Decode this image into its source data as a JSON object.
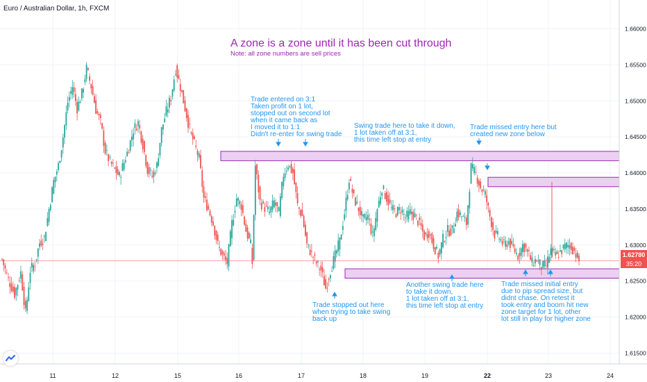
{
  "header": {
    "symbol": "Euro / Australian Dollar, 1h, FXCM"
  },
  "title": {
    "main": "A zone is a zone until it has been cut through",
    "note": "Note: all zone numbers are sell prices"
  },
  "price_badges": {
    "last_price": "1.62780",
    "countdown": "35:20"
  },
  "colors": {
    "bull": "#26a69a",
    "bear": "#ef5350",
    "zone_fill": "#e9c8f0",
    "zone_border": "#9c27b0",
    "annotation": "#2196f3",
    "title": "#9c27b0",
    "price_line": "#ef5350"
  },
  "annotations": [
    {
      "id": "trade-entered",
      "lines": [
        "Trade entered on 3:1",
        "Taken profit on 1 lot,",
        "stopped out on second lot",
        "when it came back as",
        "I moved it to 1:1",
        "Didn't re-enter for swing trade"
      ]
    },
    {
      "id": "swing-trade-1",
      "lines": [
        "Swing trade here to take it down,",
        "1 lot taken off at 3:1,",
        "this time left stop at entry"
      ]
    },
    {
      "id": "missed-entry",
      "lines": [
        "Trade missed entry here but",
        "created new zone below"
      ]
    },
    {
      "id": "stopped-out",
      "lines": [
        "Trade stopped out here",
        "when trying to take swing",
        "back up"
      ]
    },
    {
      "id": "swing-trade-2",
      "lines": [
        "Another swing trade here",
        "to take it down,",
        "1 lot taken off at 3:1,",
        "this time left stop at entry"
      ]
    },
    {
      "id": "missed-initial",
      "lines": [
        "Trade missed initial entry",
        "due to pip spread size, but",
        "didnt chase. On retest it",
        "took entry and boom hit new",
        "zone target for 1 lot, other",
        "lot still in play for higher zone"
      ]
    }
  ],
  "chart_data": {
    "type": "candlestick",
    "title": "A zone is a zone until it has been cut through",
    "subtitle": "Note: all zone numbers are sell prices",
    "x_tick_labels": [
      "11",
      "12",
      "15",
      "16",
      "17",
      "18",
      "19",
      "22",
      "23",
      "24"
    ],
    "y_tick_labels": [
      "1.66000",
      "1.65500",
      "1.65000",
      "1.64500",
      "1.64000",
      "1.63500",
      "1.63000",
      "1.62500",
      "1.62000",
      "1.61500"
    ],
    "ylim": [
      1.6135,
      1.664
    ],
    "last_price": 1.6278,
    "zones": [
      {
        "low": 1.6417,
        "high": 1.643
      },
      {
        "low": 1.6381,
        "high": 1.6394
      },
      {
        "low": 1.6254,
        "high": 1.6267
      }
    ],
    "close_anchors": [
      [
        0,
        1.628
      ],
      [
        4,
        1.6252
      ],
      [
        8,
        1.6232
      ],
      [
        12,
        1.6262
      ],
      [
        15,
        1.6205
      ],
      [
        18,
        1.6265
      ],
      [
        21,
        1.6275
      ],
      [
        24,
        1.6303
      ],
      [
        27,
        1.631
      ],
      [
        30,
        1.635
      ],
      [
        33,
        1.6388
      ],
      [
        36,
        1.641
      ],
      [
        39,
        1.645
      ],
      [
        42,
        1.6498
      ],
      [
        45,
        1.652
      ],
      [
        48,
        1.649
      ],
      [
        51,
        1.651
      ],
      [
        54,
        1.6545
      ],
      [
        57,
        1.652
      ],
      [
        60,
        1.6488
      ],
      [
        63,
        1.647
      ],
      [
        66,
        1.643
      ],
      [
        69,
        1.6415
      ],
      [
        72,
        1.6405
      ],
      [
        75,
        1.6395
      ],
      [
        78,
        1.6415
      ],
      [
        81,
        1.6435
      ],
      [
        84,
        1.646
      ],
      [
        87,
        1.647
      ],
      [
        90,
        1.644
      ],
      [
        93,
        1.6405
      ],
      [
        96,
        1.6395
      ],
      [
        99,
        1.641
      ],
      [
        102,
        1.646
      ],
      [
        105,
        1.6485
      ],
      [
        108,
        1.6505
      ],
      [
        111,
        1.6545
      ],
      [
        114,
        1.652
      ],
      [
        117,
        1.649
      ],
      [
        120,
        1.646
      ],
      [
        123,
        1.644
      ],
      [
        126,
        1.642
      ],
      [
        129,
        1.6365
      ],
      [
        132,
        1.635
      ],
      [
        135,
        1.633
      ],
      [
        138,
        1.63
      ],
      [
        141,
        1.6285
      ],
      [
        144,
        1.6275
      ],
      [
        147,
        1.633
      ],
      [
        150,
        1.6365
      ],
      [
        153,
        1.6355
      ],
      [
        156,
        1.632
      ],
      [
        159,
        1.63
      ],
      [
        160,
        1.6275
      ],
      [
        162,
        1.641
      ],
      [
        165,
        1.636
      ],
      [
        168,
        1.6352
      ],
      [
        171,
        1.6345
      ],
      [
        174,
        1.636
      ],
      [
        177,
        1.6345
      ],
      [
        180,
        1.6398
      ],
      [
        183,
        1.6412
      ],
      [
        186,
        1.64
      ],
      [
        189,
        1.6355
      ],
      [
        192,
        1.634
      ],
      [
        195,
        1.63
      ],
      [
        198,
        1.6288
      ],
      [
        201,
        1.6275
      ],
      [
        204,
        1.6265
      ],
      [
        207,
        1.624
      ],
      [
        210,
        1.6265
      ],
      [
        213,
        1.6285
      ],
      [
        216,
        1.6305
      ],
      [
        219,
        1.6345
      ],
      [
        222,
        1.6392
      ],
      [
        225,
        1.6365
      ],
      [
        228,
        1.635
      ],
      [
        231,
        1.6335
      ],
      [
        234,
        1.634
      ],
      [
        237,
        1.6312
      ],
      [
        240,
        1.635
      ],
      [
        243,
        1.638
      ],
      [
        246,
        1.6365
      ],
      [
        249,
        1.635
      ],
      [
        252,
        1.6345
      ],
      [
        255,
        1.635
      ],
      [
        258,
        1.6338
      ],
      [
        261,
        1.6345
      ],
      [
        264,
        1.634
      ],
      [
        267,
        1.633
      ],
      [
        270,
        1.6312
      ],
      [
        273,
        1.6318
      ],
      [
        276,
        1.63
      ],
      [
        279,
        1.6285
      ],
      [
        282,
        1.6308
      ],
      [
        285,
        1.632
      ],
      [
        288,
        1.632
      ],
      [
        291,
        1.6345
      ],
      [
        294,
        1.634
      ],
      [
        297,
        1.633
      ],
      [
        300,
        1.6408
      ],
      [
        303,
        1.6398
      ],
      [
        306,
        1.638
      ],
      [
        309,
        1.637
      ],
      [
        312,
        1.634
      ],
      [
        315,
        1.6315
      ],
      [
        318,
        1.631
      ],
      [
        321,
        1.63
      ],
      [
        324,
        1.6305
      ],
      [
        327,
        1.6295
      ],
      [
        330,
        1.6285
      ],
      [
        333,
        1.63
      ],
      [
        336,
        1.6292
      ],
      [
        339,
        1.6275
      ],
      [
        342,
        1.628
      ],
      [
        345,
        1.627
      ],
      [
        348,
        1.6272
      ],
      [
        351,
        1.6292
      ],
      [
        354,
        1.6285
      ],
      [
        357,
        1.629
      ],
      [
        360,
        1.6298
      ],
      [
        363,
        1.63
      ],
      [
        366,
        1.6292
      ],
      [
        369,
        1.6278
      ]
    ]
  }
}
